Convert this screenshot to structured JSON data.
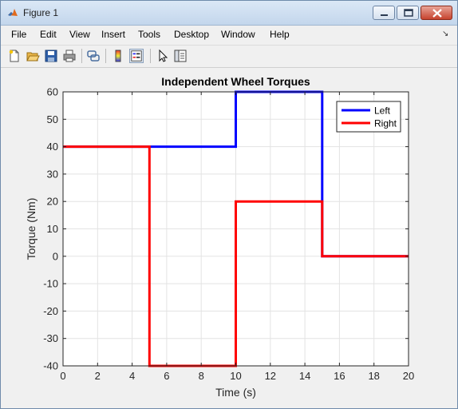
{
  "window": {
    "title": "Figure 1"
  },
  "menu": [
    "File",
    "Edit",
    "View",
    "Insert",
    "Tools",
    "Desktop",
    "Window",
    "Help"
  ],
  "toolbar": {
    "icons": [
      "new-figure-icon",
      "open-file-icon",
      "save-icon",
      "print-icon",
      "link-plot-icon",
      "colorbar-icon",
      "legend-icon",
      "pointer-icon",
      "property-inspector-icon"
    ]
  },
  "chart_data": {
    "type": "line",
    "title": "Independent Wheel Torques",
    "xlabel": "Time (s)",
    "ylabel": "Torque (Nm)",
    "xlim": [
      0,
      20
    ],
    "ylim": [
      -40,
      60
    ],
    "xticks": [
      0,
      2,
      4,
      6,
      8,
      10,
      12,
      14,
      16,
      18,
      20
    ],
    "yticks": [
      -40,
      -30,
      -20,
      -10,
      0,
      10,
      20,
      30,
      40,
      50,
      60
    ],
    "grid": true,
    "legend": {
      "location": "top-right",
      "entries": [
        "Left",
        "Right"
      ]
    },
    "series": [
      {
        "name": "Left",
        "color": "#0000ff",
        "x": [
          0,
          5,
          10,
          10,
          15,
          15,
          20
        ],
        "y": [
          40,
          40,
          40,
          60,
          60,
          0,
          0
        ]
      },
      {
        "name": "Right",
        "color": "#ff0000",
        "x": [
          0,
          5,
          5,
          10,
          10,
          15,
          15,
          20
        ],
        "y": [
          40,
          40,
          -40,
          -40,
          20,
          20,
          0,
          0
        ]
      }
    ]
  }
}
